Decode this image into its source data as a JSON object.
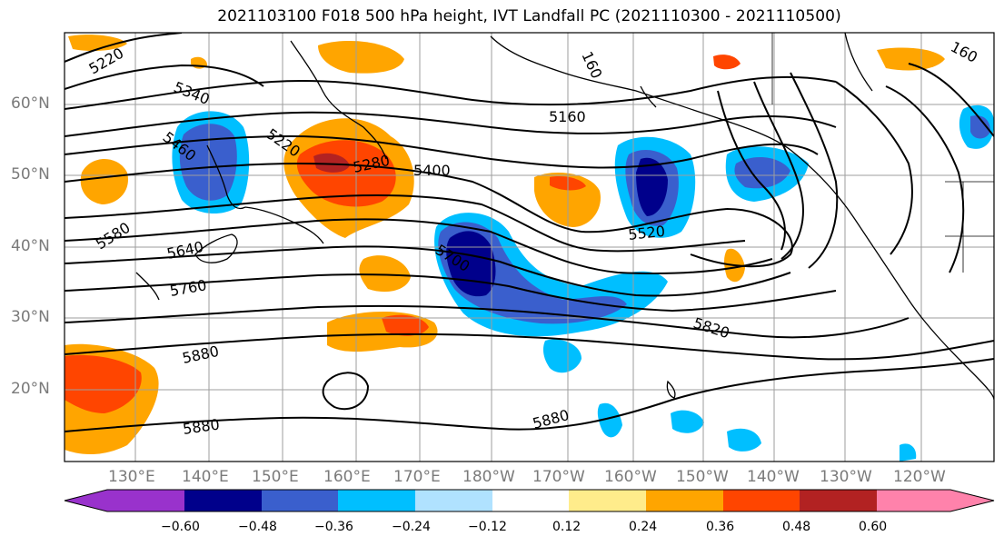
{
  "title": "2021103100 F018 500 hPa height, IVT Landfall PC (2021110300 - 2021110500)",
  "lat_ticks": [
    "60°N",
    "50°N",
    "40°N",
    "30°N",
    "20°N"
  ],
  "lon_ticks": [
    "130°E",
    "140°E",
    "150°E",
    "160°E",
    "170°E",
    "180°W",
    "170°W",
    "160°W",
    "150°W",
    "140°W",
    "130°W",
    "120°W"
  ],
  "contour_labels": [
    "5220",
    "5340",
    "5460",
    "5220",
    "5280",
    "5160",
    "5400",
    "160",
    "160",
    "5580",
    "5640",
    "5700",
    "5520",
    "5760",
    "5820",
    "5880",
    "5880",
    "5880"
  ],
  "colorbar": {
    "labels": [
      "−0.60",
      "−0.48",
      "−0.36",
      "−0.24",
      "−0.12",
      "0.12",
      "0.24",
      "0.36",
      "0.48",
      "0.60"
    ],
    "colors": [
      "#9932cc",
      "#00008b",
      "#3a5fcd",
      "#00bfff",
      "#b0e2ff",
      "#ffffff",
      "#ffec8b",
      "#ffa500",
      "#ff4500",
      "#b22222",
      "#ff82ab"
    ]
  },
  "chart_data": {
    "type": "heatmap",
    "title": "2021103100 F018 500 hPa height, IVT Landfall PC (2021110300 - 2021110500)",
    "xlabel": "",
    "ylabel": "",
    "x_ticks": [
      "130°E",
      "140°E",
      "150°E",
      "160°E",
      "170°E",
      "180°W",
      "170°W",
      "160°W",
      "150°W",
      "140°W",
      "130°W",
      "120°W"
    ],
    "y_ticks": [
      "60°N",
      "50°N",
      "40°N",
      "30°N",
      "20°N"
    ],
    "colorbar_levels": [
      -0.6,
      -0.48,
      -0.36,
      -0.24,
      -0.12,
      0.12,
      0.24,
      0.36,
      0.48,
      0.6
    ],
    "contour_levels_labeled": [
      5160,
      5220,
      5280,
      5340,
      5400,
      5460,
      5520,
      5580,
      5640,
      5700,
      5760,
      5820,
      5880
    ],
    "grid": true
  }
}
